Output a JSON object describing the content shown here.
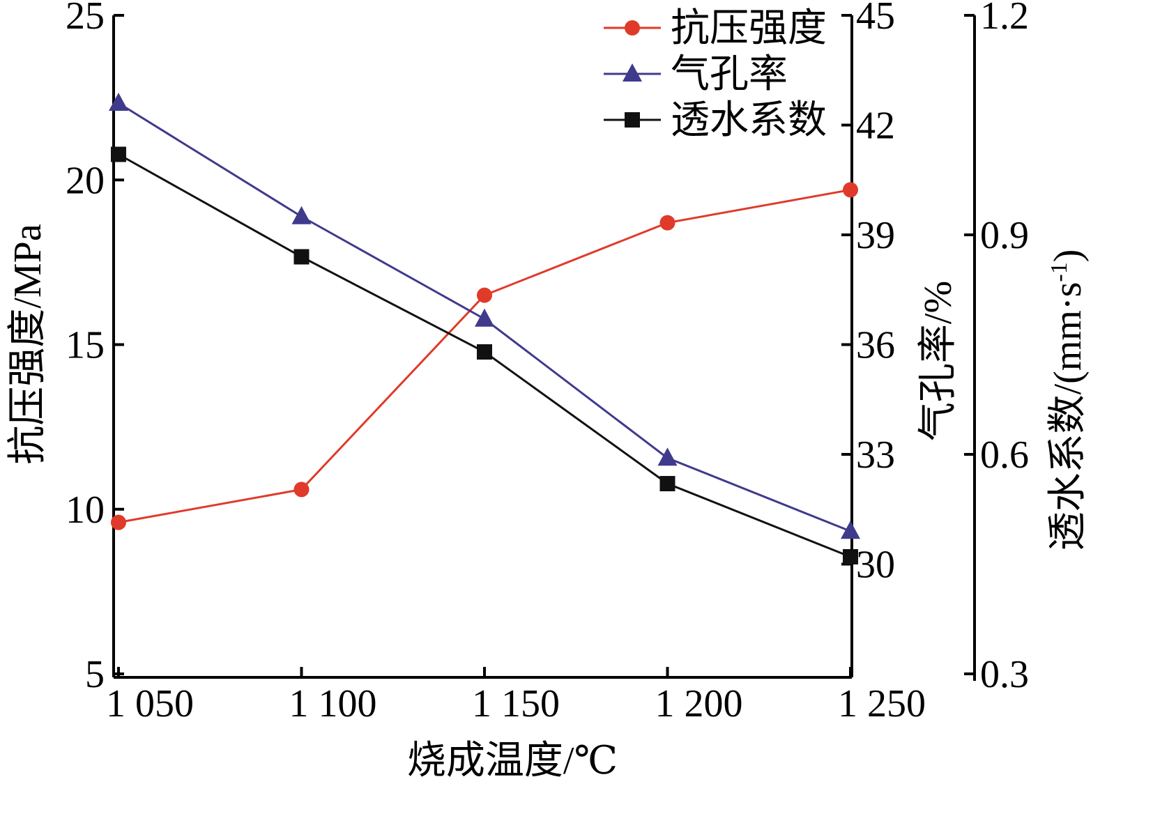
{
  "chart_data": {
    "type": "line",
    "x": [
      "1 050",
      "1 100",
      "1 150",
      "1 200",
      "1 250"
    ],
    "x_values": [
      1050,
      1100,
      1150,
      1200,
      1250
    ],
    "xlabel": "烧成温度/℃",
    "xlim": [
      1050,
      1250
    ],
    "axes": {
      "left": {
        "label": "抗压强度/MPa",
        "lim": [
          5,
          25
        ],
        "ticks": [
          5,
          10,
          15,
          20,
          25
        ],
        "tick_labels": [
          "5",
          "10",
          "15",
          "20",
          "25"
        ]
      },
      "right1": {
        "label": "气孔率/%",
        "lim": [
          27,
          45
        ],
        "ticks": [
          30,
          33,
          36,
          39,
          42,
          45
        ],
        "tick_labels": [
          "30",
          "33",
          "36",
          "39",
          "42",
          "45"
        ]
      },
      "right2": {
        "label": "透水系数/(mm·s",
        "label_sup": "-1",
        "label_end": ")",
        "lim": [
          0.3,
          1.2
        ],
        "ticks": [
          0.3,
          0.6,
          0.9,
          1.2
        ],
        "tick_labels": [
          "0.3",
          "0.6",
          "0.9",
          "1.2"
        ]
      }
    },
    "series": [
      {
        "name": "抗压强度",
        "axis": "left",
        "color": "#e03a2a",
        "marker": "circle",
        "values": [
          9.6,
          10.6,
          16.5,
          18.7,
          19.7
        ]
      },
      {
        "name": "气孔率",
        "axis": "right1",
        "color": "#3f3a8c",
        "marker": "triangle",
        "values": [
          42.6,
          39.5,
          36.7,
          32.9,
          30.9
        ]
      },
      {
        "name": "透水系数",
        "axis": "right2",
        "color": "#111111",
        "marker": "square",
        "values": [
          1.01,
          0.87,
          0.74,
          0.56,
          0.46
        ]
      }
    ],
    "legend": "top-right",
    "grid": false
  }
}
